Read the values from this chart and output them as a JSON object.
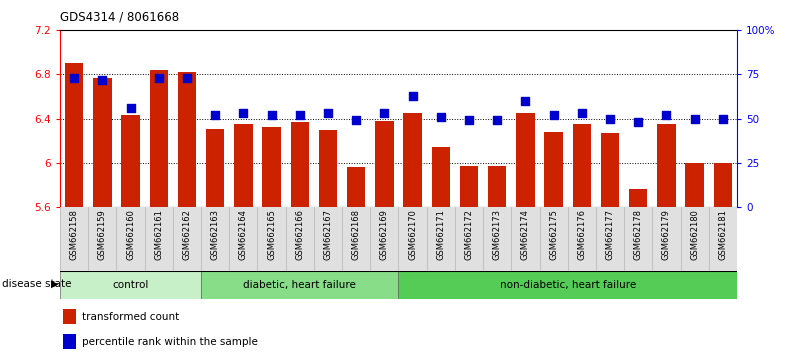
{
  "title": "GDS4314 / 8061668",
  "samples": [
    "GSM662158",
    "GSM662159",
    "GSM662160",
    "GSM662161",
    "GSM662162",
    "GSM662163",
    "GSM662164",
    "GSM662165",
    "GSM662166",
    "GSM662167",
    "GSM662168",
    "GSM662169",
    "GSM662170",
    "GSM662171",
    "GSM662172",
    "GSM662173",
    "GSM662174",
    "GSM662175",
    "GSM662176",
    "GSM662177",
    "GSM662178",
    "GSM662179",
    "GSM662180",
    "GSM662181"
  ],
  "bar_values": [
    6.9,
    6.77,
    6.43,
    6.84,
    6.82,
    6.31,
    6.35,
    6.32,
    6.37,
    6.3,
    5.96,
    6.38,
    6.45,
    6.14,
    5.97,
    5.97,
    6.45,
    6.28,
    6.35,
    6.27,
    5.76,
    6.35,
    6.0,
    6.0
  ],
  "percentile_values": [
    73,
    72,
    56,
    73,
    73,
    52,
    53,
    52,
    52,
    53,
    49,
    53,
    63,
    51,
    49,
    49,
    60,
    52,
    53,
    50,
    48,
    52,
    50,
    50
  ],
  "groups": [
    {
      "label": "control",
      "start": 0,
      "end": 5,
      "color": "#c8f0c8"
    },
    {
      "label": "diabetic, heart failure",
      "start": 5,
      "end": 12,
      "color": "#88dd88"
    },
    {
      "label": "non-diabetic, heart failure",
      "start": 12,
      "end": 24,
      "color": "#55cc55"
    }
  ],
  "bar_color": "#CC2200",
  "percentile_color": "#0000CC",
  "ylim_left": [
    5.6,
    7.2
  ],
  "ylim_right": [
    0,
    100
  ],
  "yticks_left": [
    5.6,
    6.0,
    6.4,
    6.8,
    7.2
  ],
  "ytick_labels_left": [
    "5.6",
    "6",
    "6.4",
    "6.8",
    "7.2"
  ],
  "yticks_right": [
    0,
    25,
    50,
    75,
    100
  ],
  "ytick_labels_right": [
    "0",
    "25",
    "50",
    "75",
    "100%"
  ],
  "bar_width": 0.65,
  "percentile_marker_size": 40,
  "legend_items": [
    {
      "color": "#CC2200",
      "label": "transformed count"
    },
    {
      "color": "#0000CC",
      "label": "percentile rank within the sample"
    }
  ],
  "disease_state_label": "disease state"
}
